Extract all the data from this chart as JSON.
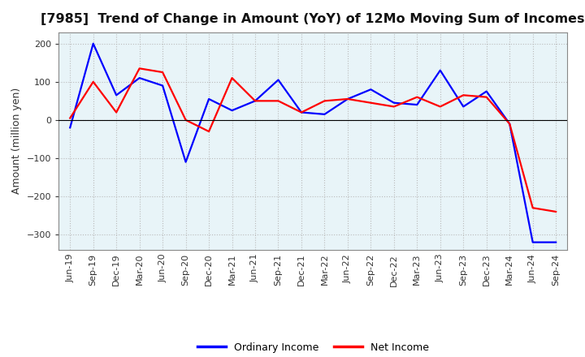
{
  "title": "[7985]  Trend of Change in Amount (YoY) of 12Mo Moving Sum of Incomes",
  "ylabel": "Amount (million yen)",
  "xlabels": [
    "Jun-19",
    "Sep-19",
    "Dec-19",
    "Mar-20",
    "Jun-20",
    "Sep-20",
    "Dec-20",
    "Mar-21",
    "Jun-21",
    "Sep-21",
    "Dec-21",
    "Mar-22",
    "Jun-22",
    "Sep-22",
    "Dec-22",
    "Mar-23",
    "Jun-23",
    "Sep-23",
    "Dec-23",
    "Mar-24",
    "Jun-24",
    "Sep-24"
  ],
  "ordinary_income": [
    -20,
    200,
    65,
    110,
    90,
    -110,
    55,
    25,
    50,
    105,
    20,
    15,
    55,
    80,
    45,
    40,
    130,
    35,
    75,
    -10,
    -320,
    -320
  ],
  "net_income": [
    5,
    100,
    20,
    135,
    125,
    0,
    -30,
    110,
    50,
    50,
    20,
    50,
    55,
    45,
    35,
    60,
    35,
    65,
    60,
    -10,
    -230,
    -240
  ],
  "ordinary_color": "#0000ff",
  "net_color": "#ff0000",
  "ylim": [
    -340,
    230
  ],
  "yticks": [
    -300,
    -200,
    -100,
    0,
    100,
    200
  ],
  "plot_bg_color": "#e8f4f8",
  "fig_bg_color": "#ffffff",
  "grid_color": "#bbbbbb",
  "line_width": 1.6,
  "title_fontsize": 11.5,
  "axis_label_fontsize": 9,
  "tick_fontsize": 8,
  "legend_fontsize": 9
}
